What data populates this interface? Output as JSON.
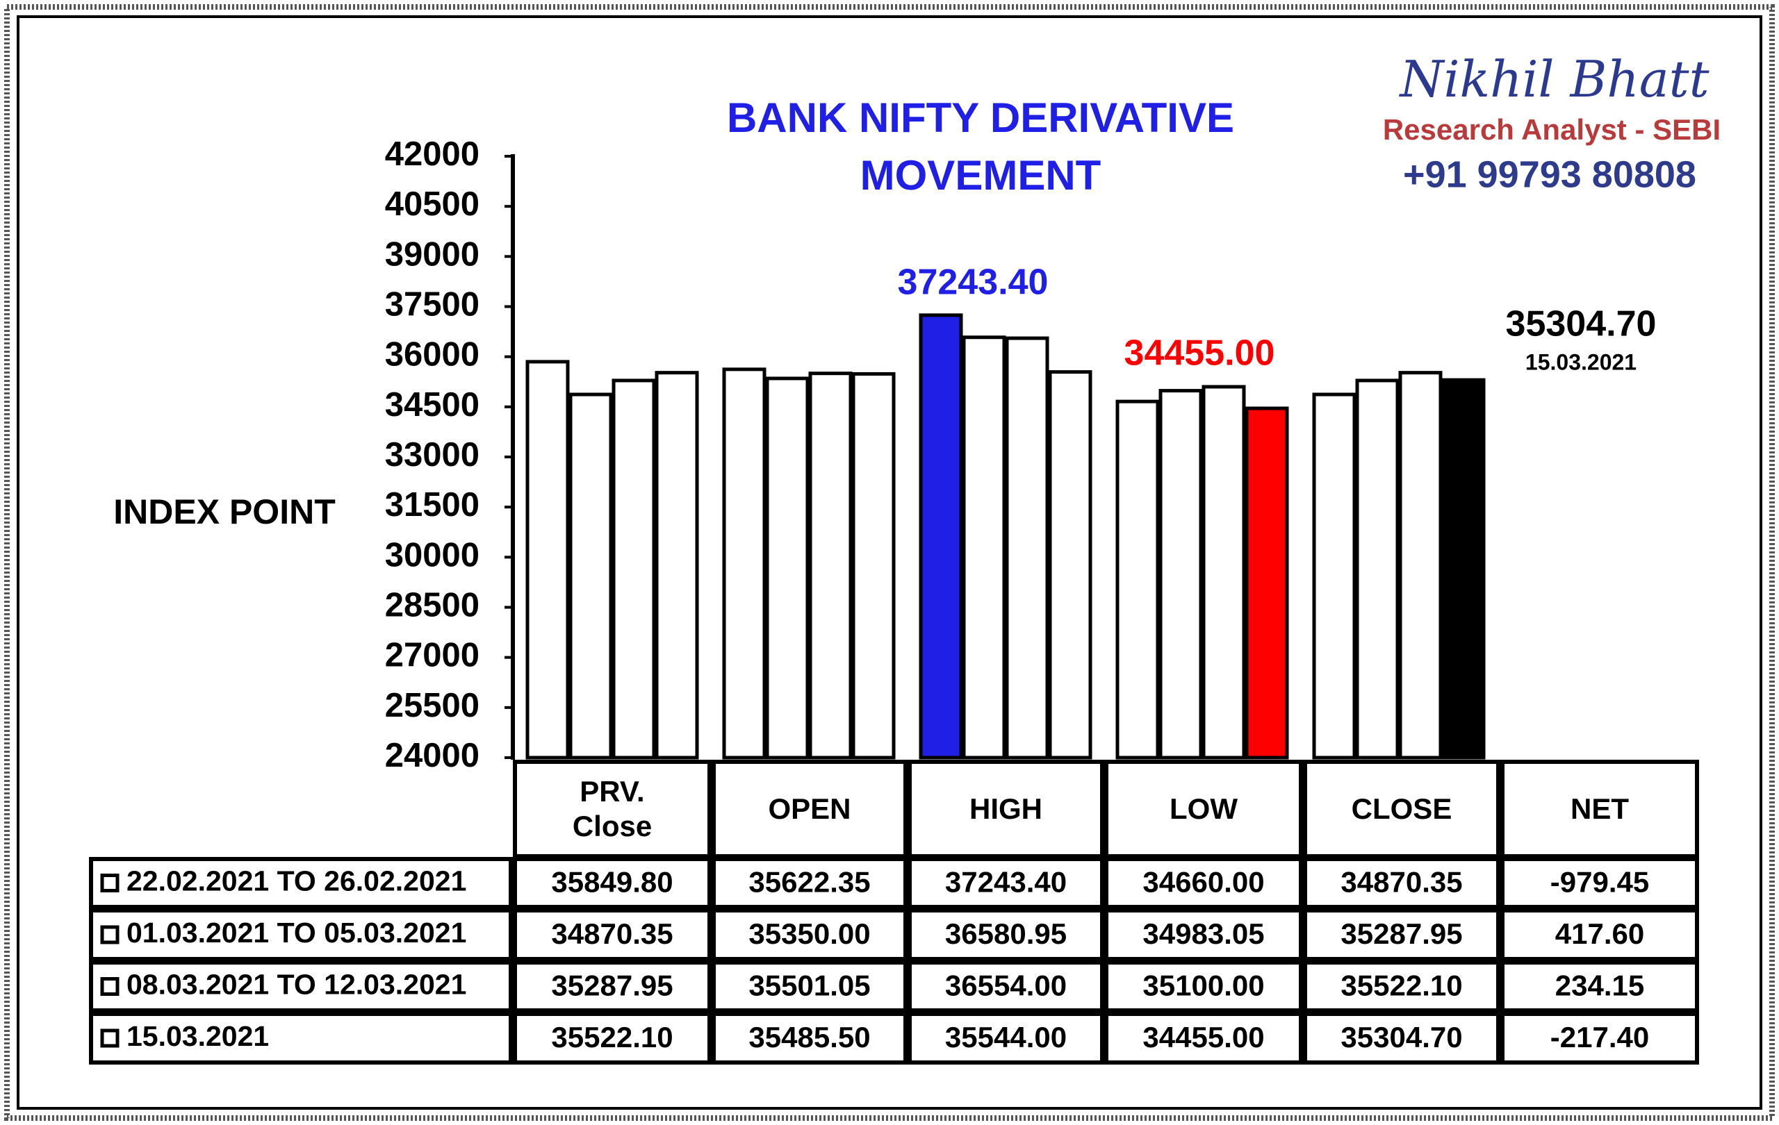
{
  "chart_data": {
    "type": "bar",
    "title": "BANK NIFTY DERIVATIVE MOVEMENT",
    "ylabel": "INDEX POINT",
    "brand": {
      "name": "Nikhil Bhatt",
      "role": "Research Analyst - SEBI",
      "phone": "+91 99793 80808"
    },
    "categories": [
      "PRV. Close",
      "OPEN",
      "HIGH",
      "LOW",
      "CLOSE"
    ],
    "net_header": "NET",
    "ylim": [
      24000,
      42000
    ],
    "yticks": [
      24000,
      25500,
      27000,
      28500,
      30000,
      31500,
      33000,
      34500,
      36000,
      37500,
      39000,
      40500,
      42000
    ],
    "series": [
      {
        "name": "22.02.2021 TO 26.02.2021",
        "bar_colors": [
          "#ffffff",
          "#ffffff",
          "#1f1fe6",
          "#ffffff",
          "#ffffff"
        ],
        "values": [
          35849.8,
          35622.35,
          37243.4,
          34660,
          34870.35
        ],
        "value_labels": [
          "35849.80",
          "35622.35",
          "37243.40",
          "34660.00",
          "34870.35"
        ],
        "net": -979.45,
        "net_label": "-979.45"
      },
      {
        "name": "01.03.2021 TO 05.03.2021",
        "bar_colors": [
          "#ffffff",
          "#ffffff",
          "#ffffff",
          "#ffffff",
          "#ffffff"
        ],
        "values": [
          34870.35,
          35350,
          36580.95,
          34983.05,
          35287.95
        ],
        "value_labels": [
          "34870.35",
          "35350.00",
          "36580.95",
          "34983.05",
          "35287.95"
        ],
        "net": 417.6,
        "net_label": "417.60"
      },
      {
        "name": "08.03.2021 TO 12.03.2021",
        "bar_colors": [
          "#ffffff",
          "#ffffff",
          "#ffffff",
          "#ffffff",
          "#ffffff"
        ],
        "values": [
          35287.95,
          35501.05,
          36554,
          35100,
          35522.1
        ],
        "value_labels": [
          "35287.95",
          "35501.05",
          "36554.00",
          "35100.00",
          "35522.10"
        ],
        "net": 234.15,
        "net_label": "234.15"
      },
      {
        "name": "15.03.2021",
        "bar_colors": [
          "#ffffff",
          "#ffffff",
          "#ffffff",
          "#ff0000",
          "#000000"
        ],
        "values": [
          35522.1,
          35485.5,
          35544,
          34455,
          35304.7
        ],
        "value_labels": [
          "35522.10",
          "35485.50",
          "35544.00",
          "34455.00",
          "35304.70"
        ],
        "net": -217.4,
        "net_label": "-217.40"
      }
    ],
    "annotations": [
      {
        "text": "37243.40",
        "color": "#1f1fe6"
      },
      {
        "text": "34455.00",
        "color": "#ff0000"
      },
      {
        "text": "35304.70",
        "color": "#000000",
        "date": "15.03.2021"
      }
    ]
  }
}
